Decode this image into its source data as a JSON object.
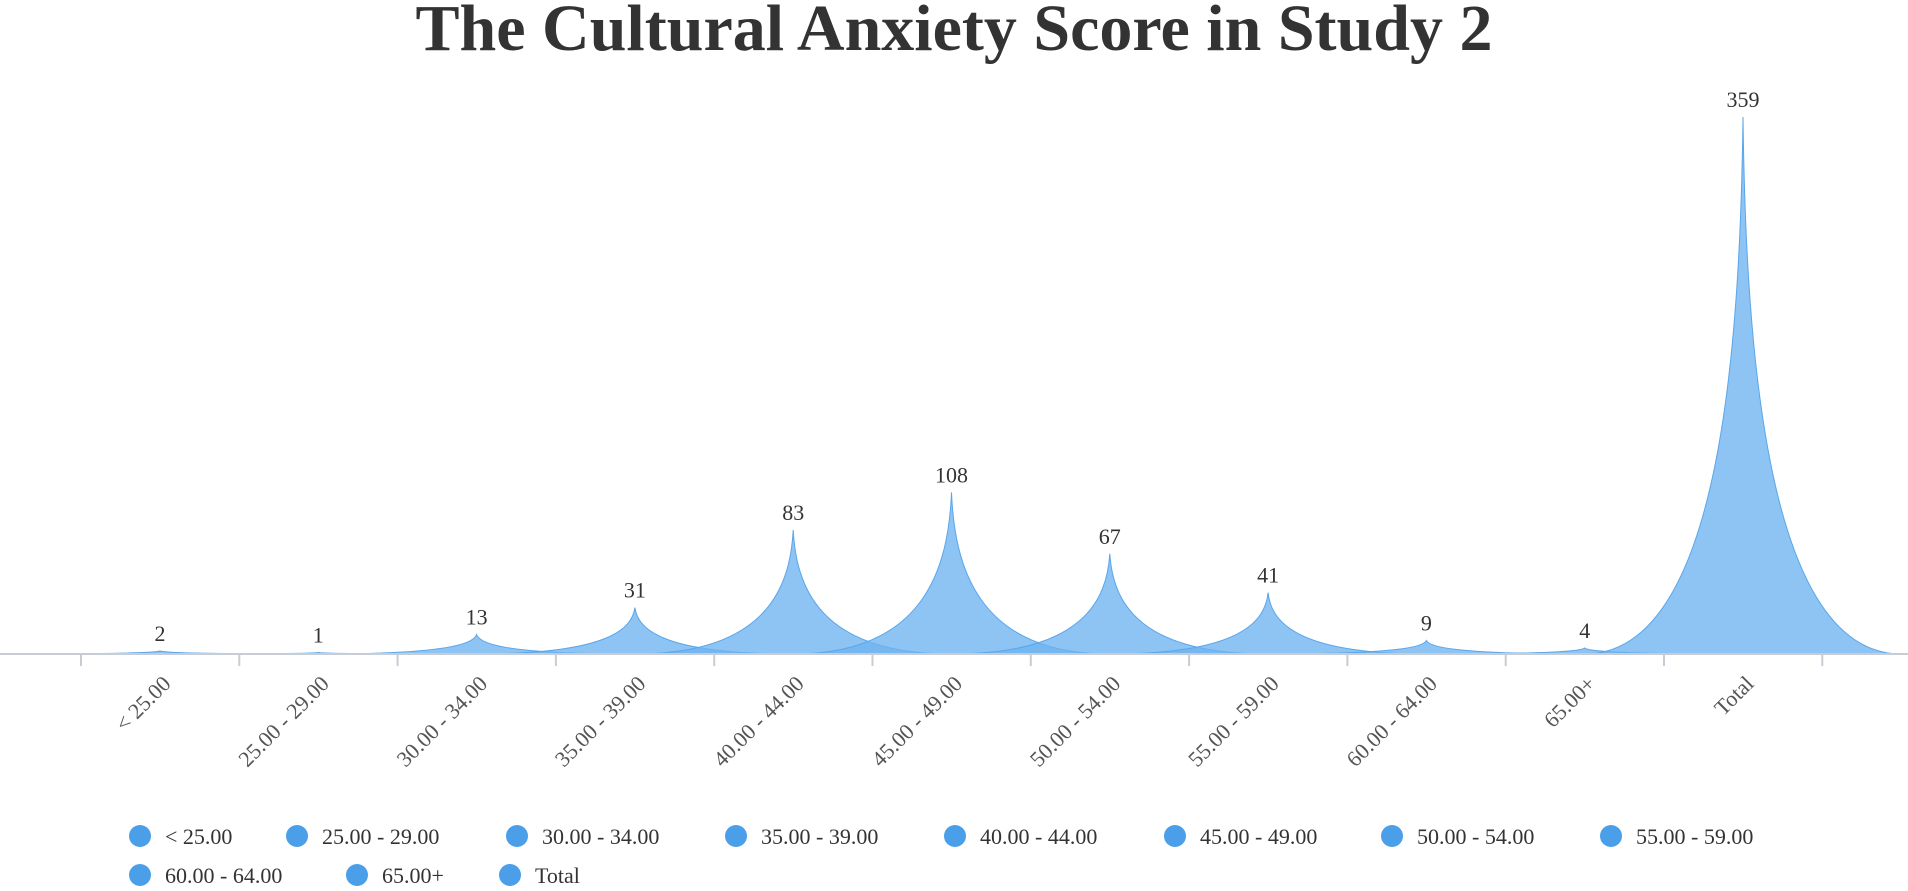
{
  "colors": {
    "area_fill": "#6db3f0",
    "area_stroke": "#5aa6ea",
    "legend_marker": "#4a9fe8",
    "axis": "#c8ccd4",
    "text": "#333333"
  },
  "chart_data": {
    "type": "area",
    "title": "The Cultural Anxiety Score in Study 2",
    "xlabel": "",
    "ylabel": "",
    "grid": false,
    "legend_position": "bottom",
    "categories": [
      "< 25.00",
      "25.00 - 29.00",
      "30.00 - 34.00",
      "35.00 - 39.00",
      "40.00 - 44.00",
      "45.00 - 49.00",
      "50.00 - 54.00",
      "55.00 - 59.00",
      "60.00 - 64.00",
      "65.00+",
      "Total"
    ],
    "values": [
      2,
      1,
      13,
      31,
      83,
      108,
      67,
      41,
      9,
      4,
      359
    ],
    "ylim": [
      0,
      359
    ],
    "legend": [
      "< 25.00",
      "25.00 - 29.00",
      "30.00 - 34.00",
      "35.00 - 39.00",
      "40.00 - 44.00",
      "45.00 - 49.00",
      "50.00 - 54.00",
      "55.00 - 59.00",
      "60.00 - 64.00",
      "65.00+",
      "Total"
    ]
  }
}
